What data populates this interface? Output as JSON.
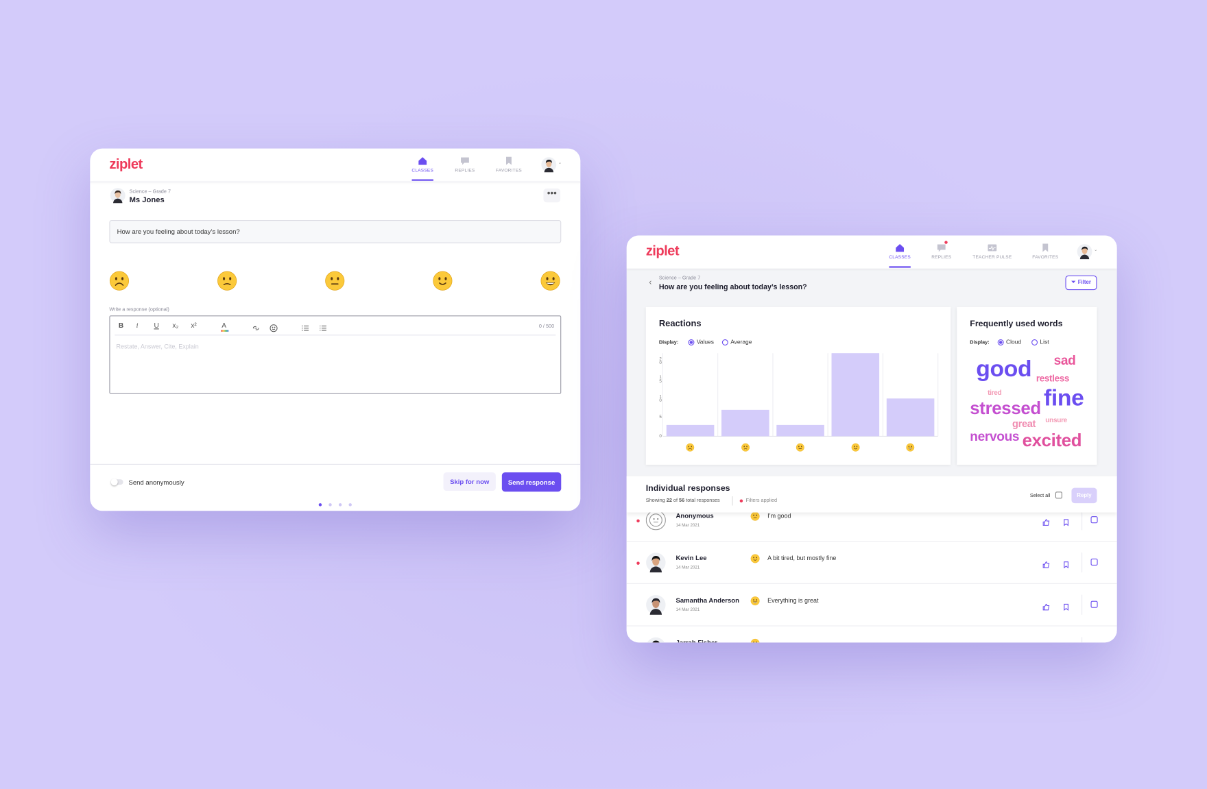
{
  "student_view": {
    "logo": "ziplet",
    "nav": [
      "CLASSES",
      "REPLIES",
      "FAVORITES"
    ],
    "class_name": "Science – Grade 7",
    "teacher": "Ms Jones",
    "question": "How are you feeling about today’s lesson?",
    "response_label": "Write a response (optional)",
    "toolbar": [
      "B",
      "i",
      "U",
      "x₂",
      "x²",
      "A"
    ],
    "counter": "0 / 500",
    "placeholder": "Restate, Answer, Cite, Explain",
    "anonymous_label": "Send anonymously",
    "skip_button": "Skip for now",
    "send_button": "Send response"
  },
  "teacher_view": {
    "logo": "ziplet",
    "nav": [
      "CLASSES",
      "REPLIES",
      "TEACHER PULSE",
      "FAVORITES"
    ],
    "class_name": "Science – Grade 7",
    "question": "How are you feeling about today’s lesson?",
    "filter_button": "Filter",
    "word_panel": {
      "title": "Frequently used words",
      "display_label": "Display:",
      "display_options": [
        "Cloud",
        "List"
      ],
      "words": [
        "good",
        "sad",
        "restless",
        "tired",
        "stressed",
        "fine",
        "unsure",
        "great",
        "nervous",
        "excited"
      ]
    },
    "responses": {
      "title": "Individual responses",
      "showing": "Showing",
      "shown_count": "22",
      "of": "of",
      "total_count": "56",
      "total_suffix": "total responses",
      "filters_applied": "Filters applied",
      "select_all": "Select all",
      "reply_button": "Reply",
      "rows": [
        {
          "name": "Anonymous",
          "date": "14 Mar 2021",
          "text": "I’m good"
        },
        {
          "name": "Kevin Lee",
          "date": "14 Mar 2021",
          "text": "A bit tired, but mostly fine"
        },
        {
          "name": "Samantha Anderson",
          "date": "14 Mar 2021",
          "text": "Everything is great"
        },
        {
          "name": "Jarrah Fisher"
        }
      ]
    }
  },
  "chart_data": {
    "type": "bar",
    "title": "Reactions",
    "display_label": "Display:",
    "display_options": [
      "Values",
      "Average"
    ],
    "categories": [
      null,
      null,
      null,
      null,
      null
    ],
    "values": [
      3,
      7,
      3,
      22,
      10
    ],
    "color": "#d4ccfa",
    "ylim": [
      0,
      22
    ],
    "yticks": [
      0,
      5,
      10,
      15,
      20
    ]
  }
}
